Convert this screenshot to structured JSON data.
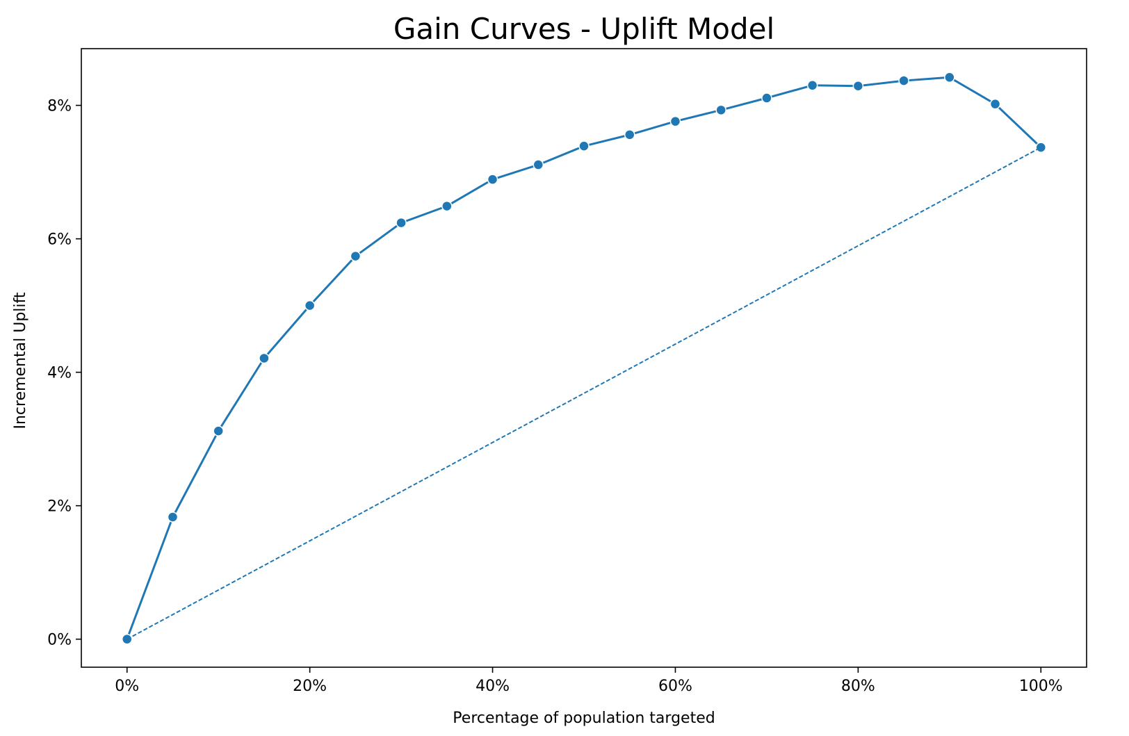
{
  "chart_data": {
    "type": "line",
    "title": "Gain Curves - Uplift Model",
    "xlabel": "Percentage of population targeted",
    "ylabel": "Incremental Uplift",
    "xlim": [
      -5,
      105
    ],
    "ylim": [
      -0.42,
      8.85
    ],
    "x_ticks": [
      0,
      20,
      40,
      60,
      80,
      100
    ],
    "x_tick_labels": [
      "0%",
      "20%",
      "40%",
      "60%",
      "80%",
      "100%"
    ],
    "y_ticks": [
      0,
      2,
      4,
      6,
      8
    ],
    "y_tick_labels": [
      "0%",
      "2%",
      "4%",
      "6%",
      "8%"
    ],
    "grid": false,
    "series": [
      {
        "style": "solid-with-markers",
        "color": "#1f77b4",
        "x": [
          0,
          5,
          10,
          15,
          20,
          25,
          30,
          35,
          40,
          45,
          50,
          55,
          60,
          65,
          70,
          75,
          80,
          85,
          90,
          95,
          100
        ],
        "values": [
          0.0,
          1.83,
          3.12,
          4.21,
          5.0,
          5.74,
          6.24,
          6.49,
          6.89,
          7.11,
          7.39,
          7.56,
          7.76,
          7.93,
          8.11,
          8.3,
          8.29,
          8.37,
          8.42,
          8.02,
          7.37
        ]
      },
      {
        "style": "dashed",
        "color": "#1f77b4",
        "x": [
          0,
          100
        ],
        "values": [
          0.0,
          7.37
        ]
      }
    ]
  }
}
